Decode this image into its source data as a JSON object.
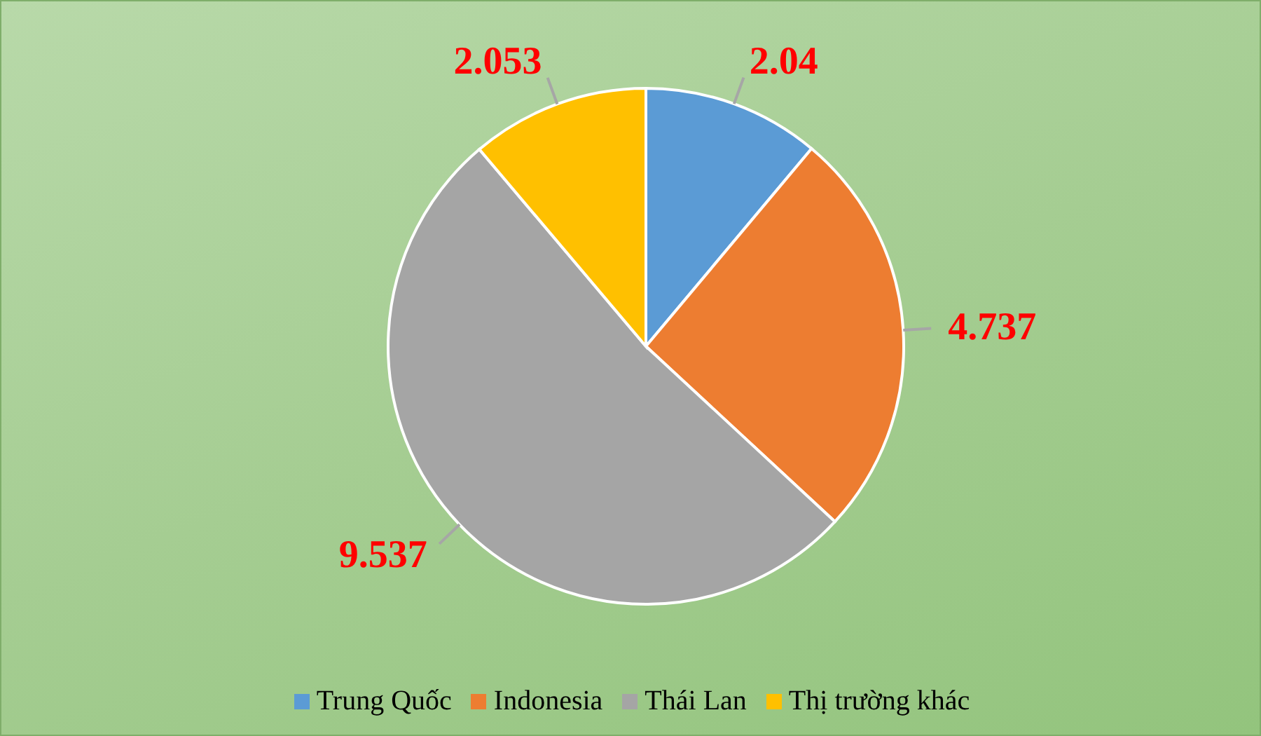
{
  "chart_data": {
    "type": "pie",
    "categories": [
      "Trung Quốc",
      "Indonesia",
      "Thái Lan",
      "Thị trường khác"
    ],
    "values": [
      2.04,
      4.737,
      9.537,
      2.053
    ],
    "colors": [
      "#5b9bd5",
      "#ed7d31",
      "#a5a5a5",
      "#ffc000"
    ],
    "data_labels": true,
    "legend": "bottom"
  }
}
